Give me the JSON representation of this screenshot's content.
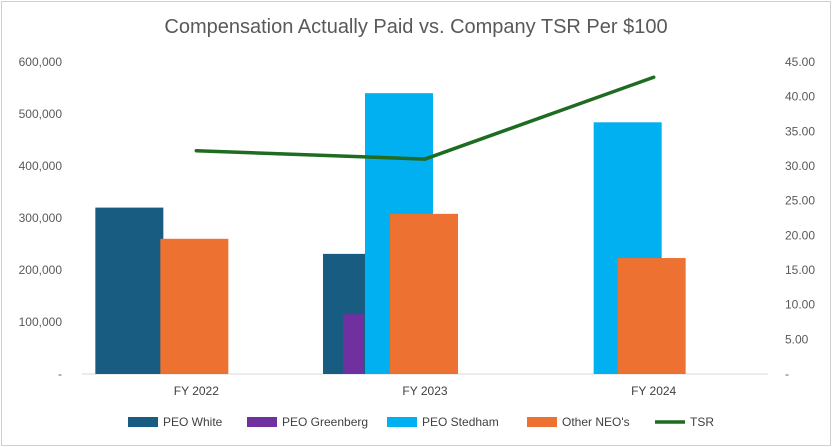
{
  "chart_data": {
    "type": "bar",
    "title": "Compensation Actually Paid vs. Company TSR Per $100",
    "categories": [
      "FY 2022",
      "FY 2023",
      "FY 2024"
    ],
    "series": [
      {
        "name": "PEO White",
        "type": "bar",
        "axis": "left",
        "color": "#185C82",
        "values": [
          320000,
          231000,
          null
        ]
      },
      {
        "name": "PEO Greenberg",
        "type": "bar",
        "axis": "left",
        "color": "#7030A0",
        "values": [
          null,
          115000,
          null
        ]
      },
      {
        "name": "PEO Stedham",
        "type": "bar",
        "axis": "left",
        "color": "#00B0F0",
        "values": [
          null,
          540000,
          484000
        ]
      },
      {
        "name": "Other NEO's",
        "type": "bar",
        "axis": "left",
        "color": "#ED7231",
        "values": [
          260000,
          308000,
          223000
        ]
      },
      {
        "name": "TSR",
        "type": "line",
        "axis": "right",
        "color": "#1E6B22",
        "values": [
          32.2,
          31.0,
          42.8
        ]
      }
    ],
    "y_left": {
      "min": 0,
      "max": 600000,
      "ticks": [
        {
          "value": 600000,
          "label": "600,000"
        },
        {
          "value": 500000,
          "label": "500,000"
        },
        {
          "value": 400000,
          "label": "400,000"
        },
        {
          "value": 300000,
          "label": "300,000"
        },
        {
          "value": 200000,
          "label": "200,000"
        },
        {
          "value": 100000,
          "label": "100,000"
        },
        {
          "value": 0,
          "label": "-"
        }
      ]
    },
    "y_right": {
      "min": 0,
      "max": 45,
      "ticks": [
        {
          "value": 45,
          "label": "45.00"
        },
        {
          "value": 40,
          "label": "40.00"
        },
        {
          "value": 35,
          "label": "35.00"
        },
        {
          "value": 30,
          "label": "30.00"
        },
        {
          "value": 25,
          "label": "25.00"
        },
        {
          "value": 20,
          "label": "20.00"
        },
        {
          "value": 15,
          "label": "15.00"
        },
        {
          "value": 10,
          "label": "10.00"
        },
        {
          "value": 5,
          "label": "5.00"
        },
        {
          "value": 0,
          "label": "-"
        }
      ]
    },
    "legend_position": "bottom"
  }
}
